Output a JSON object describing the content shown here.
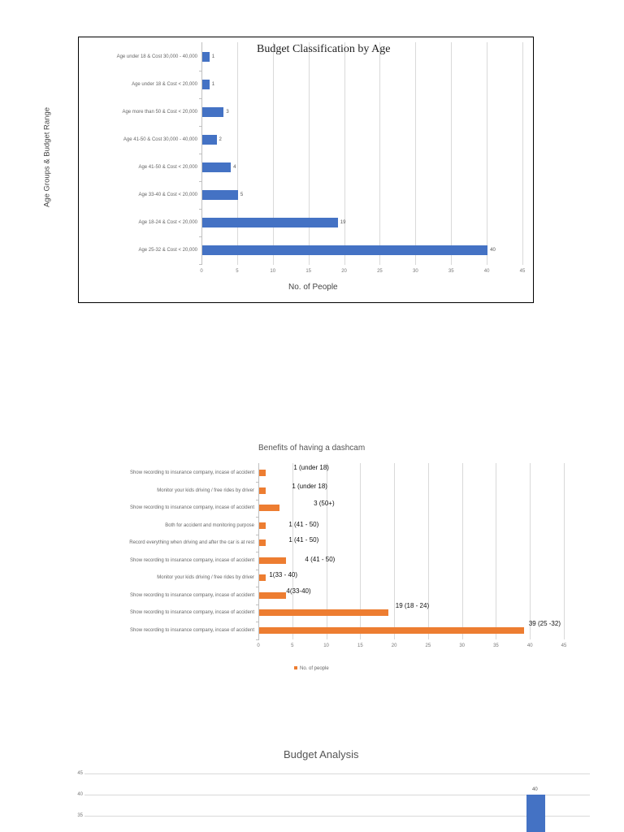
{
  "chart_data": [
    {
      "type": "bar",
      "orientation": "horizontal",
      "title": "Budget Classification by Age",
      "xlabel": "No. of People",
      "ylabel": "Age Groups & Budget Range",
      "categories": [
        "Age under 18 & Cost 30,000 - 40,000",
        "Age under 18 & Cost < 20,000",
        "Age more than 50 & Cost < 20,000",
        "Age 41-50 & Cost 30,000 - 40,000",
        "Age 41-50 & Cost < 20,000",
        "Age 33-40 & Cost < 20,000",
        "Age 18-24 & Cost < 20,000",
        "Age 25-32 & Cost < 20,000"
      ],
      "values": [
        1,
        1,
        3,
        2,
        4,
        5,
        19,
        40
      ],
      "data_labels": [
        "1",
        "1",
        "3",
        "2",
        "4",
        "5",
        "19",
        "40"
      ],
      "xlim": [
        0,
        45
      ],
      "xticks": [
        "0",
        "5",
        "10",
        "15",
        "20",
        "25",
        "30",
        "35",
        "40",
        "45"
      ],
      "grid": true,
      "bar_color": "#4472c4",
      "legend": null
    },
    {
      "type": "bar",
      "orientation": "horizontal",
      "title": "Benefits of having a dashcam",
      "xlabel": "",
      "ylabel": "",
      "categories": [
        "Show recording to insurance company, incase of accident",
        "Monitor your kids driving / free rides by driver",
        "Show recording to insurance company, incase of accident",
        "Both for accident and monitoring purpose",
        "Record everything when driving and after the car is at rest",
        "Show recording to insurance company, incase of accident",
        "Monitor your kids driving / free rides by driver",
        "Show recording to insurance company, incase of accident",
        "Show recording to insurance company, incase of accident",
        "Show recording to insurance company, incase of accident"
      ],
      "values": [
        1,
        1,
        3,
        1,
        1,
        4,
        1,
        4,
        19,
        39
      ],
      "data_labels": [
        "1 (under 18)",
        "1 (under 18)",
        "3 (50+)",
        "1 (41 - 50)",
        "1 (41 - 50)",
        "4 (41 - 50)",
        "1(33 - 40)",
        "4(33-40)",
        "19 (18 - 24)",
        "39 (25 -32)"
      ],
      "xlim": [
        0,
        45
      ],
      "xticks": [
        "0",
        "5",
        "10",
        "15",
        "20",
        "25",
        "30",
        "35",
        "40",
        "45"
      ],
      "grid": true,
      "bar_color": "#ed7d31",
      "legend": {
        "position": "bottom",
        "entries": [
          "No. of people"
        ]
      }
    },
    {
      "type": "bar",
      "orientation": "vertical",
      "title": "Budget Analysis",
      "partially_visible": true,
      "yticks_visible": [
        "45",
        "40",
        "35"
      ],
      "ylim_visible": [
        35,
        45
      ],
      "series": [
        {
          "name": "",
          "values": [
            40
          ],
          "data_labels": [
            "40"
          ]
        }
      ],
      "grid": true,
      "bar_color": "#4472c4"
    }
  ],
  "chart1": {
    "title": "Budget Classification by Age",
    "xlabel": "No. of People",
    "ylabel": "Age Groups & Budget Range",
    "rows": [
      {
        "label": "Age under 18 & Cost 30,000 - 40,000",
        "value": 1,
        "text": "1"
      },
      {
        "label": "Age under 18 & Cost < 20,000",
        "value": 1,
        "text": "1"
      },
      {
        "label": "Age more than 50 & Cost < 20,000",
        "value": 3,
        "text": "3"
      },
      {
        "label": "Age 41-50 & Cost 30,000 - 40,000",
        "value": 2,
        "text": "2"
      },
      {
        "label": "Age 41-50 & Cost < 20,000",
        "value": 4,
        "text": "4"
      },
      {
        "label": "Age 33-40 & Cost < 20,000",
        "value": 5,
        "text": "5"
      },
      {
        "label": "Age 18-24 & Cost < 20,000",
        "value": 19,
        "text": "19"
      },
      {
        "label": "Age 25-32 & Cost < 20,000",
        "value": 40,
        "text": "40"
      }
    ],
    "xticks": [
      "0",
      "5",
      "10",
      "15",
      "20",
      "25",
      "30",
      "35",
      "40",
      "45"
    ]
  },
  "chart2": {
    "title": "Benefits of having a dashcam",
    "legend_label": "No. of people",
    "rows": [
      {
        "label": "Show recording to insurance company, incase of accident",
        "value": 1,
        "text": "1 (under 18)"
      },
      {
        "label": "Monitor your kids driving / free rides by driver",
        "value": 1,
        "text": "1 (under 18)"
      },
      {
        "label": "Show recording to insurance company, incase of accident",
        "value": 3,
        "text": "3 (50+)"
      },
      {
        "label": "Both for accident and monitoring purpose",
        "value": 1,
        "text": "1 (41 - 50)"
      },
      {
        "label": "Record everything when driving and after the car is at rest",
        "value": 1,
        "text": "1 (41 - 50)"
      },
      {
        "label": "Show recording to insurance company, incase of accident",
        "value": 4,
        "text": "4 (41 - 50)"
      },
      {
        "label": "Monitor your kids driving / free rides by driver",
        "value": 1,
        "text": "1(33 - 40)"
      },
      {
        "label": "Show recording to insurance company, incase of accident",
        "value": 4,
        "text": "4(33-40)"
      },
      {
        "label": "Show recording to insurance company, incase of accident",
        "value": 19,
        "text": "19 (18 - 24)"
      },
      {
        "label": "Show recording to insurance company, incase of accident",
        "value": 39,
        "text": "39 (25 -32)"
      }
    ],
    "xticks": [
      "0",
      "5",
      "10",
      "15",
      "20",
      "25",
      "30",
      "35",
      "40",
      "45"
    ]
  },
  "chart3": {
    "title": "Budget Analysis",
    "yticks": [
      "45",
      "40",
      "35"
    ],
    "bar_label": "40"
  }
}
